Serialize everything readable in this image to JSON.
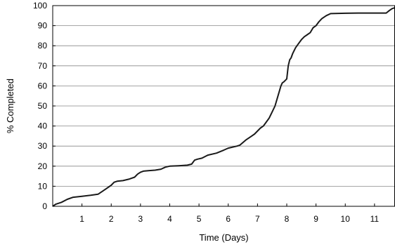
{
  "chart_data": {
    "type": "line",
    "title": "",
    "xlabel": "Time (Days)",
    "ylabel": "% Completed",
    "xlim": [
      0,
      11.7
    ],
    "ylim": [
      0,
      100
    ],
    "xticks": [
      1,
      2,
      3,
      4,
      5,
      6,
      7,
      8,
      9,
      10,
      11
    ],
    "yticks": [
      0,
      10,
      20,
      30,
      40,
      50,
      60,
      70,
      80,
      90,
      100
    ],
    "grid": "horizontal",
    "legend": "none",
    "series": [
      {
        "color": "#1a1a1a",
        "x": [
          0,
          0.1,
          0.3,
          0.5,
          0.7,
          1.0,
          1.3,
          1.55,
          1.7,
          1.85,
          2.0,
          2.1,
          2.2,
          2.4,
          2.6,
          2.8,
          2.9,
          3.0,
          3.1,
          3.3,
          3.5,
          3.7,
          3.85,
          4.0,
          4.3,
          4.6,
          4.75,
          4.85,
          4.95,
          5.1,
          5.3,
          5.6,
          5.85,
          6.0,
          6.3,
          6.4,
          6.6,
          6.8,
          6.9,
          7.1,
          7.2,
          7.3,
          7.4,
          7.5,
          7.6,
          7.7,
          7.8,
          7.85,
          7.9,
          8.0,
          8.05,
          8.1,
          8.15,
          8.2,
          8.3,
          8.4,
          8.5,
          8.6,
          8.7,
          8.8,
          8.9,
          9.0,
          9.1,
          9.2,
          9.35,
          9.5,
          10.0,
          10.5,
          11.0,
          11.4,
          11.5,
          11.6,
          11.7
        ],
        "y": [
          0,
          1,
          2,
          3.5,
          4.5,
          5,
          5.5,
          6,
          7.5,
          9,
          10.5,
          12,
          12.5,
          12.8,
          13.5,
          14.5,
          16,
          17,
          17.5,
          17.8,
          18,
          18.5,
          19.5,
          20,
          20.2,
          20.5,
          21,
          23,
          23.5,
          24,
          25.5,
          26.5,
          28,
          29,
          30,
          30.5,
          33,
          35,
          36,
          39,
          40,
          42,
          44,
          47,
          50,
          55,
          60,
          61.5,
          62,
          63.5,
          70,
          73,
          74,
          76,
          79,
          81,
          83,
          84.5,
          85.5,
          86.5,
          89,
          90,
          92,
          93.5,
          95,
          96,
          96.2,
          96.3,
          96.3,
          96.3,
          97.5,
          98.5,
          99
        ]
      }
    ]
  }
}
